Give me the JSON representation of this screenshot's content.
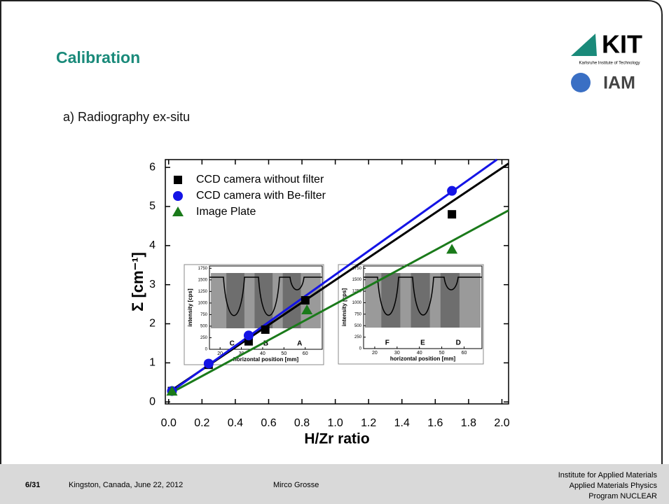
{
  "header": {
    "title": "Calibration",
    "subtitle": "a) Radiography ex-situ",
    "logo_main": "KIT",
    "logo_sub": "Karlsruhe Institute of Technology",
    "logo_iam": "IAM"
  },
  "chart_data": {
    "type": "scatter",
    "x_label": "H/Zr ratio",
    "y_label": "Σ [cm⁻¹]",
    "xlim": [
      -0.02,
      2.04
    ],
    "ylim": [
      -0.05,
      6.2
    ],
    "xticks": [
      {
        "value": 0,
        "label": "0.0"
      },
      {
        "value": 0.2,
        "label": "0.2"
      },
      {
        "value": 0.4,
        "label": "0.4"
      },
      {
        "value": 0.6,
        "label": "0.6"
      },
      {
        "value": 0.8,
        "label": "0.8"
      },
      {
        "value": 1,
        "label": "1.0"
      },
      {
        "value": 1.2,
        "label": "1.2"
      },
      {
        "value": 1.4,
        "label": "1.4"
      },
      {
        "value": 1.6,
        "label": "1.6"
      },
      {
        "value": 1.8,
        "label": "1.8"
      },
      {
        "value": 2,
        "label": "2.0"
      }
    ],
    "yticks": [
      0,
      1,
      2,
      3,
      4,
      5,
      6
    ],
    "series": [
      {
        "name": "CCD camera without filter",
        "color": "#000000",
        "marker": "square",
        "x": [
          0.02,
          0.24,
          0.48,
          0.58,
          0.82,
          1.7
        ],
        "values": [
          0.28,
          0.95,
          1.55,
          1.85,
          2.6,
          4.8
        ]
      },
      {
        "name": "CCD camera with Be-filter",
        "color": "#1414e6",
        "marker": "circle",
        "x": [
          0.02,
          0.24,
          0.48,
          1.7
        ],
        "values": [
          0.28,
          0.98,
          1.7,
          5.4
        ]
      },
      {
        "name": "Image Plate",
        "color": "#1a7a1a",
        "marker": "triangle",
        "x": [
          0.02,
          0.83,
          1.7
        ],
        "values": [
          0.27,
          2.35,
          3.9
        ]
      }
    ],
    "fits": [
      {
        "color": "#000000",
        "x": [
          0,
          2.04
        ],
        "values": [
          0.25,
          6.1
        ]
      },
      {
        "color": "#1414e6",
        "x": [
          0,
          1.97
        ],
        "values": [
          0.22,
          6.2
        ]
      },
      {
        "color": "#1a7a1a",
        "x": [
          0,
          2.04
        ],
        "values": [
          0.2,
          4.9
        ]
      }
    ]
  },
  "insets": [
    {
      "ylabel": "intensity [cps]",
      "xlabel": "horizontal position [mm]",
      "xlim": [
        15,
        68
      ],
      "ylim": [
        0,
        1800
      ],
      "xticks": [
        20,
        30,
        40,
        50,
        60
      ],
      "yticks": [
        0,
        250,
        500,
        750,
        1000,
        1250,
        1500,
        1750
      ],
      "letters": [
        "C",
        "B",
        "A"
      ]
    },
    {
      "ylabel": "intensity [cps]",
      "xlabel": "horizontal position [mm]",
      "xlim": [
        15,
        68
      ],
      "ylim": [
        0,
        1800
      ],
      "xticks": [
        20,
        30,
        40,
        50,
        60
      ],
      "yticks": [
        0,
        250,
        500,
        750,
        1000,
        1250,
        1500,
        1750
      ],
      "letters": [
        "F",
        "E",
        "D"
      ]
    }
  ],
  "footer": {
    "page": "6/31",
    "event": "Kingston, Canada, June 22, 2012",
    "author": "Mirco Grosse",
    "institute": [
      "Institute for Applied Materials",
      "Applied Materials Physics",
      "Program NUCLEAR"
    ]
  }
}
